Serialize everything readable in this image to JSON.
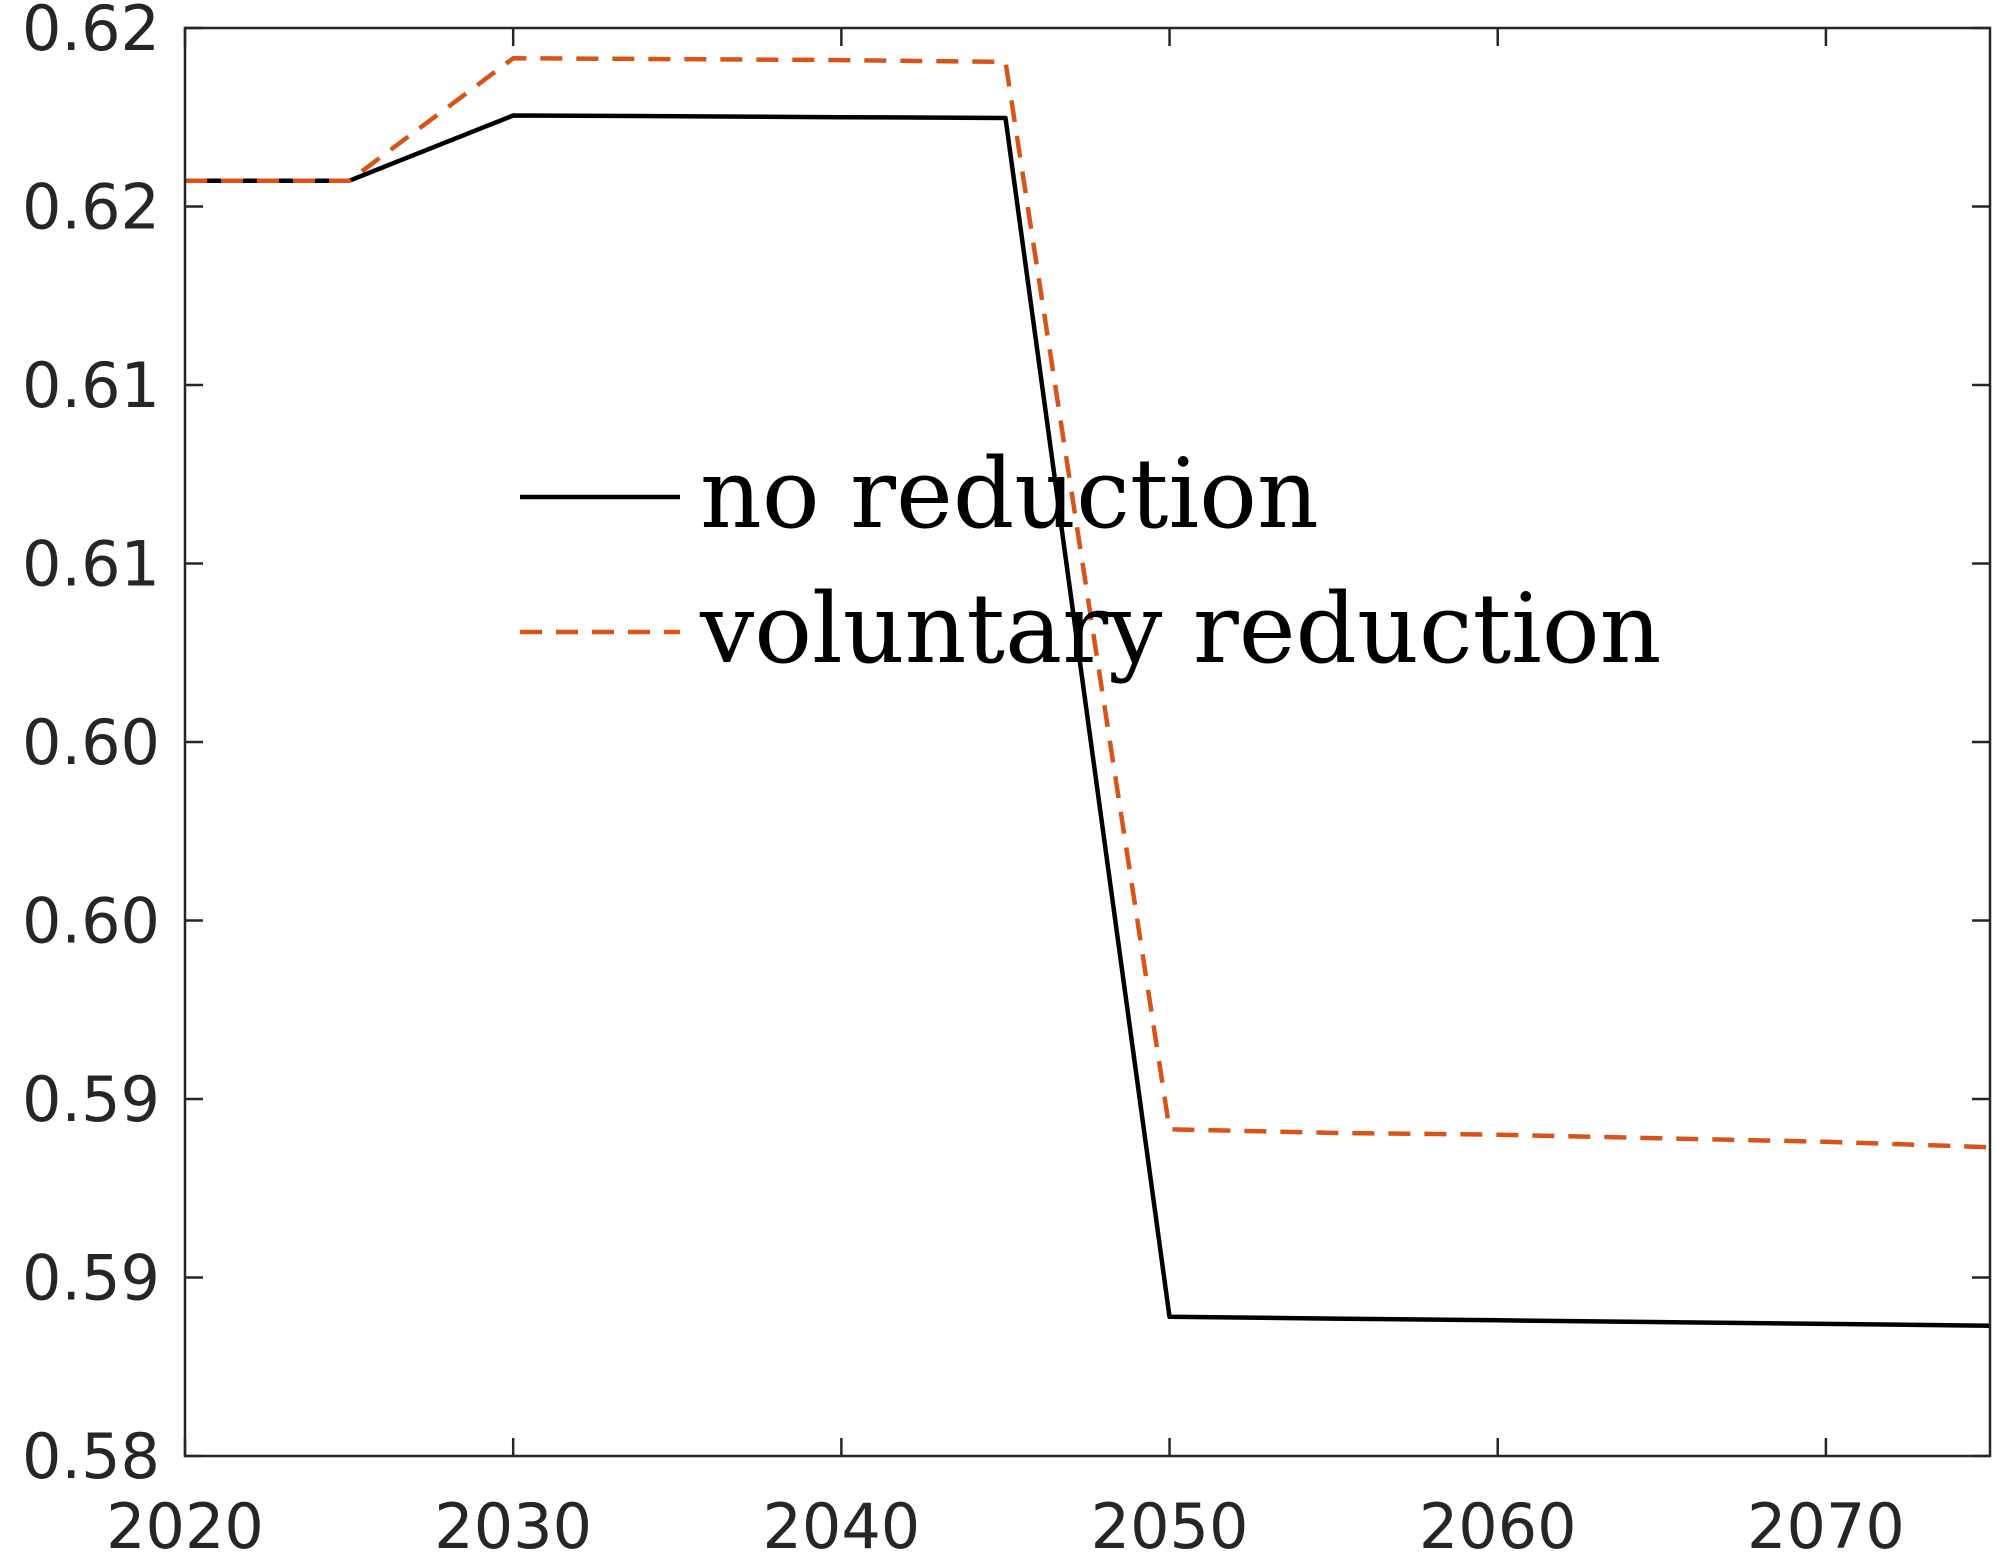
{
  "chart_data": {
    "type": "line",
    "title": "",
    "xlabel": "",
    "ylabel": "",
    "x": [
      2020,
      2025,
      2030,
      2035,
      2040,
      2045,
      2050,
      2055,
      2060,
      2065,
      2070,
      2075
    ],
    "xlim": [
      2020,
      2075
    ],
    "ylim": [
      0.58,
      0.62
    ],
    "x_ticks": [
      {
        "value": 2020,
        "label": "2020"
      },
      {
        "value": 2030,
        "label": "2030"
      },
      {
        "value": 2040,
        "label": "2040"
      },
      {
        "value": 2050,
        "label": "2050"
      },
      {
        "value": 2060,
        "label": "2060"
      },
      {
        "value": 2070,
        "label": "2070"
      }
    ],
    "y_ticks": [
      {
        "value": 0.58,
        "label": "0.58"
      },
      {
        "value": 0.585,
        "label": "0.59"
      },
      {
        "value": 0.59,
        "label": "0.59"
      },
      {
        "value": 0.595,
        "label": "0.60"
      },
      {
        "value": 0.6,
        "label": "0.60"
      },
      {
        "value": 0.605,
        "label": "0.61"
      },
      {
        "value": 0.61,
        "label": "0.61"
      },
      {
        "value": 0.615,
        "label": "0.62"
      },
      {
        "value": 0.62,
        "label": "0.62"
      }
    ],
    "series": [
      {
        "name": "no reduction",
        "color": "#000000",
        "style": "solid",
        "values": [
          0.61572,
          0.61572,
          0.61755,
          0.61753,
          0.6175,
          0.61748,
          0.5839,
          0.58385,
          0.5838,
          0.58375,
          0.5837,
          0.58365
        ]
      },
      {
        "name": "voluntary reduction",
        "color": "#D95319",
        "style": "dashed",
        "values": [
          0.61572,
          0.61572,
          0.61915,
          0.61913,
          0.6191,
          0.61905,
          0.58915,
          0.58905,
          0.589,
          0.5889,
          0.5888,
          0.58865
        ]
      }
    ],
    "grid": false,
    "legend_position": "center"
  }
}
